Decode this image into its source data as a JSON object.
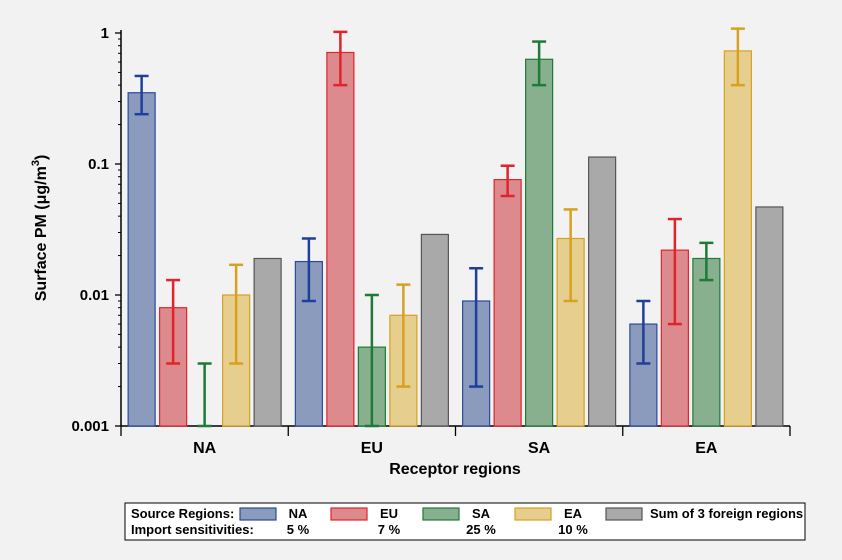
{
  "chart_data": {
    "type": "bar",
    "ylabel": "Surface PM (μg/m",
    "ylabel_sup": "3",
    "ylabel_close": ")",
    "xlabel": "Receptor regions",
    "yscale": "log",
    "ylim": [
      0.001,
      1
    ],
    "yticks": [
      {
        "value": 0.001,
        "label": "0.001"
      },
      {
        "value": 0.01,
        "label": "0.01"
      },
      {
        "value": 0.1,
        "label": "0.1"
      },
      {
        "value": 1,
        "label": "1"
      }
    ],
    "categories": [
      "NA",
      "EU",
      "SA",
      "EA"
    ],
    "series": [
      {
        "name": "NA",
        "color": "#8a9bbd",
        "edge": "#2b4a9a",
        "errcolor": "#1f3f9a",
        "values": [
          0.35,
          0.018,
          0.009,
          0.006
        ],
        "err_low": [
          0.24,
          0.009,
          0.002,
          0.003
        ],
        "err_high": [
          0.47,
          0.027,
          0.016,
          0.009
        ]
      },
      {
        "name": "EU",
        "color": "#dd8a8e",
        "edge": "#e0242c",
        "errcolor": "#e0242c",
        "values": [
          0.008,
          0.71,
          0.076,
          0.022
        ],
        "err_low": [
          0.003,
          0.4,
          0.057,
          0.006
        ],
        "err_high": [
          0.013,
          1.02,
          0.097,
          0.038
        ]
      },
      {
        "name": "SA",
        "color": "#88b08e",
        "edge": "#1e7a38",
        "errcolor": "#1e7a38",
        "values": [
          0.001,
          0.004,
          0.63,
          0.019
        ],
        "err_low": [
          0.001,
          0.001,
          0.4,
          0.013
        ],
        "err_high": [
          0.003,
          0.01,
          0.86,
          0.025
        ]
      },
      {
        "name": "EA",
        "color": "#e6cf8e",
        "edge": "#d8a020",
        "errcolor": "#d8a020",
        "values": [
          0.01,
          0.007,
          0.027,
          0.73
        ],
        "err_low": [
          0.003,
          0.002,
          0.009,
          0.4
        ],
        "err_high": [
          0.017,
          0.012,
          0.045,
          1.08
        ]
      },
      {
        "name": "Sum of 3 foreign regions",
        "color": "#a9a9a9",
        "edge": "#555555",
        "errcolor": null,
        "values": [
          0.019,
          0.029,
          0.113,
          0.047
        ],
        "err_low": null,
        "err_high": null
      }
    ],
    "legend": {
      "placement": "bottom",
      "title": "Source Regions:",
      "row2_label": "Import sensitivities:",
      "sensitivities": [
        "5 %",
        "7 %",
        "25 %",
        "10 %"
      ]
    }
  }
}
